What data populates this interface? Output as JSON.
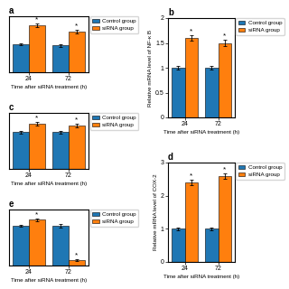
{
  "chart_data": [
    {
      "type": "bar",
      "title": "a",
      "categories": [
        "24",
        "72"
      ],
      "xlabel": "Time after siRNA treatment (h)",
      "ylim": [
        0,
        2.2
      ],
      "tick_labels": "x",
      "legend": "upper left",
      "series": [
        {
          "name": "Control group",
          "values": [
            1.1,
            1.05
          ],
          "errors": [
            0.05,
            0.05
          ]
        },
        {
          "name": "siRNA group",
          "values": [
            1.85,
            1.6
          ],
          "errors": [
            0.07,
            0.06
          ]
        }
      ],
      "annotations": [
        {
          "text": "*",
          "series": "siRNA group",
          "category": "24"
        },
        {
          "text": "*",
          "series": "siRNA group",
          "category": "72"
        }
      ]
    },
    {
      "type": "bar",
      "title": "b",
      "categories": [
        "24",
        "72"
      ],
      "xlabel": "Time after siRNA treatment (h)",
      "ylabel": "Relative mRNA level of NF-κ B",
      "ylim": [
        0,
        2
      ],
      "yticks": [
        0,
        0.5,
        1,
        1.5,
        2
      ],
      "legend": "upper left",
      "series": [
        {
          "name": "Control group",
          "values": [
            1.0,
            1.0
          ],
          "errors": [
            0.04,
            0.04
          ]
        },
        {
          "name": "siRNA group",
          "values": [
            1.6,
            1.5
          ],
          "errors": [
            0.06,
            0.06
          ]
        }
      ],
      "annotations": [
        {
          "text": "*",
          "series": "siRNA group",
          "category": "24"
        },
        {
          "text": "*",
          "series": "siRNA group",
          "category": "72"
        }
      ]
    },
    {
      "type": "bar",
      "title": "c",
      "categories": [
        "24",
        "72"
      ],
      "xlabel": "Time after siRNA treatment (h)",
      "ylim": [
        0,
        1.8
      ],
      "tick_labels": "x",
      "legend": "upper left",
      "series": [
        {
          "name": "Control group",
          "values": [
            1.18,
            1.18
          ],
          "errors": [
            0.04,
            0.04
          ]
        },
        {
          "name": "siRNA group",
          "values": [
            1.45,
            1.4
          ],
          "errors": [
            0.05,
            0.05
          ]
        }
      ],
      "annotations": [
        {
          "text": "*",
          "series": "siRNA group",
          "category": "24"
        },
        {
          "text": "*",
          "series": "siRNA group",
          "category": "72"
        }
      ]
    },
    {
      "type": "bar",
      "title": "d",
      "categories": [
        "24",
        "72"
      ],
      "xlabel": "Time after siRNA treatment (h)",
      "ylabel": "Relative mRNA level of COX-2",
      "ylim": [
        0,
        3
      ],
      "yticks": [
        0,
        1,
        2,
        3
      ],
      "legend": "upper left",
      "series": [
        {
          "name": "Control group",
          "values": [
            1.0,
            1.0
          ],
          "errors": [
            0.05,
            0.05
          ]
        },
        {
          "name": "siRNA group",
          "values": [
            2.4,
            2.6
          ],
          "errors": [
            0.08,
            0.08
          ]
        }
      ],
      "annotations": [
        {
          "text": "*",
          "series": "siRNA group",
          "category": "24"
        },
        {
          "text": "*",
          "series": "siRNA group",
          "category": "72"
        }
      ]
    },
    {
      "type": "bar",
      "title": "e",
      "categories": [
        "24",
        "72"
      ],
      "xlabel": "Time after siRNA treatment (h)",
      "ylim": [
        0,
        1.9
      ],
      "tick_labels": "x",
      "legend": "upper left",
      "series": [
        {
          "name": "Control group",
          "values": [
            1.35,
            1.35
          ],
          "errors": [
            0.04,
            0.05
          ]
        },
        {
          "name": "siRNA group",
          "values": [
            1.55,
            0.18
          ],
          "errors": [
            0.05,
            0.03
          ]
        }
      ],
      "annotations": [
        {
          "text": "*",
          "series": "siRNA group",
          "category": "24"
        },
        {
          "text": "*",
          "series": "siRNA group",
          "category": "72"
        }
      ]
    }
  ]
}
